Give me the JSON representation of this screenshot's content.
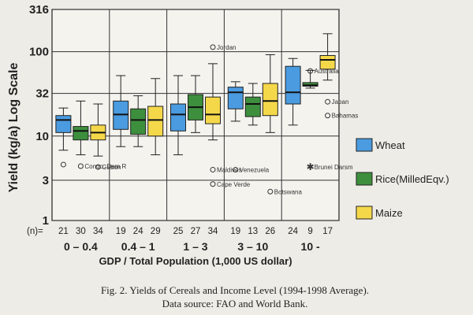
{
  "chart_data": {
    "type": "box",
    "ylabel": "Yield (kg/a) Log Scale",
    "xlabel": "GDP / Total Population (1,000 US dollar)",
    "yscale": "log",
    "ylim": [
      1,
      316
    ],
    "yticks": [
      {
        "value": 1,
        "label": "1"
      },
      {
        "value": 3,
        "label": "3"
      },
      {
        "value": 10,
        "label": "10"
      },
      {
        "value": 32,
        "label": "32"
      },
      {
        "value": 100,
        "label": "100"
      },
      {
        "value": 316,
        "label": "316"
      }
    ],
    "n_label": "(n)=",
    "categories": [
      "0 – 0.4",
      "0.4 – 1",
      "1 – 3",
      "3 – 10",
      "10 -"
    ],
    "series": [
      {
        "name": "Wheat",
        "color": "#4a9be0",
        "n": [
          "21",
          "19",
          "25",
          "19",
          "24"
        ],
        "boxes": [
          {
            "whislo": 6.8,
            "q1": 11.0,
            "med": 15.5,
            "q3": 17.5,
            "whishi": 21.5
          },
          {
            "whislo": 7.5,
            "q1": 12.0,
            "med": 18.0,
            "q3": 26.0,
            "whishi": 52.0
          },
          {
            "whislo": 6.0,
            "q1": 11.5,
            "med": 18.0,
            "q3": 24.0,
            "whishi": 52.0
          },
          {
            "whislo": 15.0,
            "q1": 21.0,
            "med": 33.0,
            "q3": 38.0,
            "whishi": 44.0
          },
          {
            "whislo": 13.5,
            "q1": 24.0,
            "med": 33.0,
            "q3": 67.0,
            "whishi": 83.0
          }
        ]
      },
      {
        "name": "Rice(MilledEqv.)",
        "color": "#3d8f3d",
        "n": [
          "30",
          "24",
          "27",
          "13",
          "9"
        ],
        "boxes": [
          {
            "whislo": 6.0,
            "q1": 9.0,
            "med": 11.5,
            "q3": 13.0,
            "whishi": 26.0
          },
          {
            "whislo": 7.5,
            "q1": 10.5,
            "med": 15.5,
            "q3": 21.0,
            "whishi": 30.0
          },
          {
            "whislo": 11.0,
            "q1": 15.5,
            "med": 22.0,
            "q3": 31.0,
            "whishi": 52.0
          },
          {
            "whislo": 13.5,
            "q1": 17.0,
            "med": 24.0,
            "q3": 29.0,
            "whishi": 42.0
          },
          {
            "whislo": 37.0,
            "q1": 39.0,
            "med": 40.0,
            "q3": 43.0,
            "whishi": 60.0
          }
        ]
      },
      {
        "name": "Maize",
        "color": "#f5d84a",
        "n": [
          "34",
          "29",
          "34",
          "26",
          "17"
        ],
        "boxes": [
          {
            "whislo": 5.8,
            "q1": 9.0,
            "med": 11.0,
            "q3": 13.5,
            "whishi": 24.0
          },
          {
            "whislo": 6.0,
            "q1": 10.0,
            "med": 15.5,
            "q3": 22.5,
            "whishi": 48.0
          },
          {
            "whislo": 9.0,
            "q1": 14.0,
            "med": 18.0,
            "q3": 29.0,
            "whishi": 72.0
          },
          {
            "whislo": 11.0,
            "q1": 17.5,
            "med": 26.0,
            "q3": 42.0,
            "whishi": 92.0
          },
          {
            "whislo": 46.0,
            "q1": 62.0,
            "med": 80.0,
            "q3": 90.0,
            "whishi": 163.0
          }
        ]
      }
    ],
    "outliers": [
      {
        "group": 0,
        "series": 0,
        "value": 4.6,
        "marker": "o",
        "label": ""
      },
      {
        "group": 0,
        "series": 1,
        "value": 4.4,
        "marker": "o",
        "label": "Congo, Dem R"
      },
      {
        "group": 0,
        "series": 2,
        "value": 4.3,
        "marker": "o",
        "label": "Gabon"
      },
      {
        "group": 2,
        "series": 2,
        "value": 113.0,
        "marker": "o",
        "label": "Jordan"
      },
      {
        "group": 2,
        "series": 2,
        "value": 4.0,
        "marker": "o",
        "label": "Maldives"
      },
      {
        "group": 2,
        "series": 2,
        "value": 2.7,
        "marker": "o",
        "label": "Cape Verde"
      },
      {
        "group": 3,
        "series": 0,
        "value": 4.0,
        "marker": "o",
        "label": "Venezuela"
      },
      {
        "group": 3,
        "series": 2,
        "value": 2.2,
        "marker": "o",
        "label": "Botswana"
      },
      {
        "group": 4,
        "series": 1,
        "value": 59.0,
        "marker": "o",
        "label": "Australia"
      },
      {
        "group": 4,
        "series": 1,
        "value": 4.3,
        "marker": "*",
        "label": "Brunei Darsm"
      },
      {
        "group": 4,
        "series": 2,
        "value": 25.5,
        "marker": "o",
        "label": "Japan"
      },
      {
        "group": 4,
        "series": 2,
        "value": 17.5,
        "marker": "o",
        "label": "Bahamas"
      }
    ],
    "grid": true,
    "legend": "right"
  },
  "caption": {
    "line1": "Fig. 2. Yields of Cereals and Income Level (1994-1998 Average).",
    "line2": "Data source: FAO and World Bank."
  }
}
